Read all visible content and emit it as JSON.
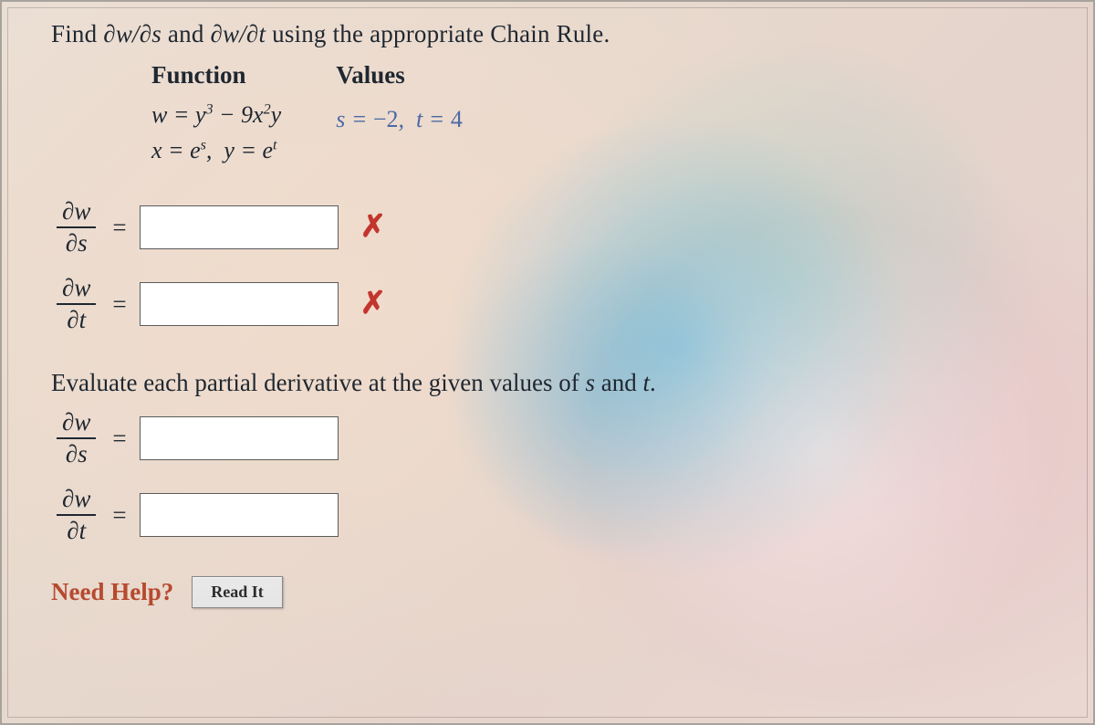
{
  "question": {
    "instruction_html": "Find <span class='ital'>∂w/∂s</span> and <span class='ital'>∂w/∂t</span> using the appropriate Chain Rule.",
    "col_function_label": "Function",
    "col_values_label": "Values",
    "func_line1_html": "w = y<sup>3</sup> − 9x<sup>2</sup>y",
    "func_line2_html": "x = e<sup>s</sup>,&nbsp;&nbsp;y = e<sup>t</sup>",
    "values_html": "s = <span class='num'>−2</span>,&nbsp;&nbsp;t = <span class='num'>4</span>",
    "instruction2_html": "Evaluate each partial derivative at the given values of <span class='ital'>s</span> and <span class='ital'>t</span>."
  },
  "rows": {
    "r1": {
      "top": "∂w",
      "bot": "∂s",
      "value": "",
      "wrong": true
    },
    "r2": {
      "top": "∂w",
      "bot": "∂t",
      "value": "",
      "wrong": true
    },
    "r3": {
      "top": "∂w",
      "bot": "∂s",
      "value": "",
      "wrong": false
    },
    "r4": {
      "top": "∂w",
      "bot": "∂t",
      "value": "",
      "wrong": false
    }
  },
  "help": {
    "label": "Need Help?",
    "read_label": "Read It"
  },
  "marks": {
    "x": "✗"
  },
  "colors": {
    "text": "#1f2730",
    "wrong": "#c2362e",
    "help": "#b64a2f",
    "value_blue": "#4d6aa5"
  }
}
